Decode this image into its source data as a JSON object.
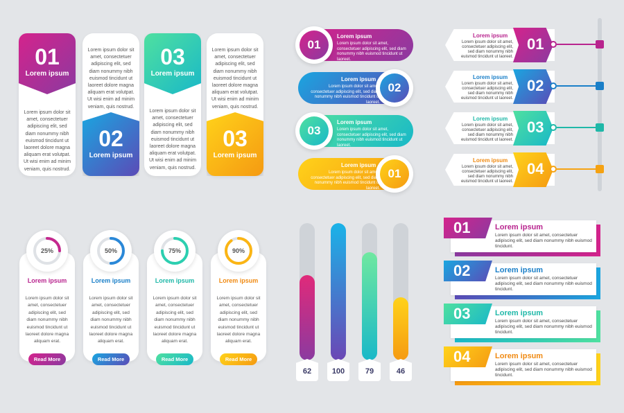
{
  "lorem_title": "Lorem ipsum",
  "lorem_short": "Lorem ipsum dolor sit amet, consectetuer adipiscing elit, sed diam nonummy nibh euismod tincidunt ut laoreet dolore magna aliquam erat volutpat. Ut wisi enim ad minim veniam, quis nostrud.",
  "lorem_long": "Lorem ipsum dolor sit amet, consectetuer adipiscing elit, sed diam nonummy nibh euismod tincidunt ut laoreet dolore magna aliquam erat volutpat. Ut wisi enim ad minim veniam, quis nostrud.",
  "lorem_pill": "Lorem ipsum dolor sit amet, consectetuer adipiscing elit, sed diam nonummy nibh euismod tincidunt ut laoreet.",
  "lorem_tag": "Lorem ipsum dolor sit amet, consectetuer adipiscing elit, sed diam nonummy nibh euismod tincidunt ut laoreet.",
  "lorem_circle": "Lorem ipsum dolor sit amet, consectetuer adipiscing elit, sed diam nonummy nibh euismod tincidunt ut laoreet dolore magna aliquam erat.",
  "lorem_banner": "Lorem ipsum dolor sit amet, consectetuer adipiscing elit, sed diam nonummy nibh euismod tincidunt.",
  "colors": {
    "magenta": "#d4238c",
    "blue": "#1aa6e0",
    "green": "#2ccfa8",
    "yellow": "#ffc21a",
    "purple": "#7a3fa8"
  },
  "tiles": {
    "n1": "01",
    "n2": "02",
    "n3": "03",
    "n4": "03"
  },
  "pills": [
    {
      "num": "01",
      "title": "Lorem ipsum"
    },
    {
      "num": "02",
      "title": "Lorem ipsum"
    },
    {
      "num": "03",
      "title": "Lorem ipsum"
    },
    {
      "num": "01",
      "title": "Lorem ipsum"
    }
  ],
  "tags": [
    {
      "num": "01",
      "title": "Lorem ipsum"
    },
    {
      "num": "02",
      "title": "Lorem ipsum"
    },
    {
      "num": "03",
      "title": "Lorem ipsum"
    },
    {
      "num": "04",
      "title": "Lorem ipsum"
    }
  ],
  "progress_cards": [
    {
      "pct": "25%",
      "value": 25,
      "title": "Lorem ipsum",
      "button": "Read More"
    },
    {
      "pct": "50%",
      "value": 50,
      "title": "Lorem ipsum",
      "button": "Read More"
    },
    {
      "pct": "75%",
      "value": 75,
      "title": "Lorem ipsum",
      "button": "Read More"
    },
    {
      "pct": "90%",
      "value": 90,
      "title": "Lorem ipsum",
      "button": "Read More"
    }
  ],
  "bars": [
    {
      "label": "62",
      "value": 62
    },
    {
      "label": "100",
      "value": 100
    },
    {
      "label": "79",
      "value": 79
    },
    {
      "label": "46",
      "value": 46
    }
  ],
  "banners": [
    {
      "num": "01",
      "title": "Lorem ipsum"
    },
    {
      "num": "02",
      "title": "Lorem ipsum"
    },
    {
      "num": "03",
      "title": "Lorem ipsum"
    },
    {
      "num": "04",
      "title": "Lorem ipsum"
    }
  ]
}
